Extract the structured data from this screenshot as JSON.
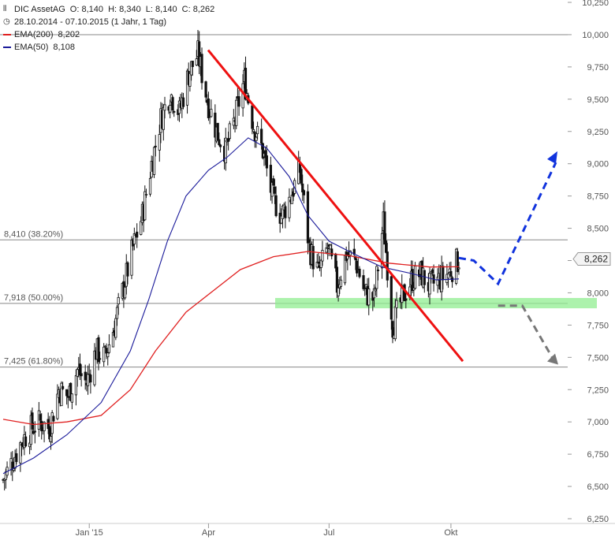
{
  "header": {
    "chart_icon": "candlestick-icon",
    "symbol": "DIC AssetAG",
    "ohlc": "O: 8,140  H: 8,340  L: 8,140  C: 8,262",
    "clock_icon": "clock-icon",
    "period": "28.10.2014 - 07.10.2015 (1 Jahr, 1 Tag)",
    "ema200_label": "EMA(200)",
    "ema200_value": "8,202",
    "ema50_label": "EMA(50)",
    "ema50_value": "8,108"
  },
  "colors": {
    "ema200": "#e02020",
    "ema50": "#1a1a9a",
    "trendline": "#ee1111",
    "bull_arrow": "#1133dd",
    "bear_arrow": "#777777",
    "support_zone": "#90ee90",
    "last_price_box": "#f4f4f4"
  },
  "chart_data": {
    "type": "candlestick",
    "ylim": [
      6.25,
      10.25
    ],
    "y_ticks": [
      "10,250",
      "10,000",
      "9,750",
      "9,500",
      "9,250",
      "9,000",
      "8,750",
      "8,500",
      "8,250",
      "8,000",
      "7,750",
      "7,500",
      "7,250",
      "7,000",
      "6,750",
      "6,500",
      "6,250"
    ],
    "y_tick_values": [
      10.25,
      10.0,
      9.75,
      9.5,
      9.25,
      9.0,
      8.75,
      8.5,
      8.25,
      8.0,
      7.75,
      7.5,
      7.25,
      7.0,
      6.75,
      6.5,
      6.25
    ],
    "x_ticks": [
      "Jan '15",
      "Apr",
      "Jul",
      "Okt"
    ],
    "x_tick_dates": [
      "2015-01-01",
      "2015-04-01",
      "2015-07-01",
      "2015-10-01"
    ],
    "start_date": "2014-10-28",
    "end_date": "2015-10-07",
    "last_price": "8,262",
    "last_price_value": 8.262,
    "fib_levels": [
      {
        "label": "8,410 (38.20%)",
        "value": 8.41
      },
      {
        "label": "7,918 (50.00%)",
        "value": 7.918
      },
      {
        "label": "7,425 (61.80%)",
        "value": 7.425
      }
    ],
    "top_line": 10.0,
    "closes_points": [
      [
        "2014-10-28",
        6.55
      ],
      [
        "2014-11-04",
        6.7
      ],
      [
        "2014-11-11",
        6.85
      ],
      [
        "2014-11-18",
        6.95
      ],
      [
        "2014-11-25",
        7.0
      ],
      [
        "2014-12-02",
        6.95
      ],
      [
        "2014-12-09",
        7.25
      ],
      [
        "2014-12-16",
        7.2
      ],
      [
        "2014-12-23",
        7.4
      ],
      [
        "2014-12-30",
        7.3
      ],
      [
        "2015-01-06",
        7.55
      ],
      [
        "2015-01-13",
        7.5
      ],
      [
        "2015-01-20",
        7.75
      ],
      [
        "2015-01-27",
        8.05
      ],
      [
        "2015-02-03",
        8.35
      ],
      [
        "2015-02-10",
        8.6
      ],
      [
        "2015-02-17",
        9.0
      ],
      [
        "2015-02-24",
        9.35
      ],
      [
        "2015-03-03",
        9.55
      ],
      [
        "2015-03-10",
        9.4
      ],
      [
        "2015-03-17",
        9.7
      ],
      [
        "2015-03-24",
        9.85
      ],
      [
        "2015-03-31",
        9.5
      ],
      [
        "2015-04-07",
        9.25
      ],
      [
        "2015-04-14",
        9.1
      ],
      [
        "2015-04-21",
        9.35
      ],
      [
        "2015-04-28",
        9.65
      ],
      [
        "2015-05-05",
        9.3
      ],
      [
        "2015-05-12",
        9.1
      ],
      [
        "2015-05-19",
        8.75
      ],
      [
        "2015-05-26",
        8.6
      ],
      [
        "2015-06-02",
        8.75
      ],
      [
        "2015-06-09",
        8.95
      ],
      [
        "2015-06-16",
        8.35
      ],
      [
        "2015-06-23",
        8.15
      ],
      [
        "2015-06-30",
        8.35
      ],
      [
        "2015-07-07",
        8.05
      ],
      [
        "2015-07-14",
        8.3
      ],
      [
        "2015-07-21",
        8.25
      ],
      [
        "2015-07-28",
        8.0
      ],
      [
        "2015-08-04",
        7.95
      ],
      [
        "2015-08-11",
        8.55
      ],
      [
        "2015-08-18",
        7.75
      ],
      [
        "2015-08-25",
        7.95
      ],
      [
        "2015-09-01",
        8.1
      ],
      [
        "2015-09-08",
        8.15
      ],
      [
        "2015-09-15",
        8.05
      ],
      [
        "2015-09-22",
        8.1
      ],
      [
        "2015-09-29",
        8.15
      ],
      [
        "2015-10-07",
        8.262
      ]
    ],
    "ema50_points": [
      [
        "2014-10-28",
        6.6
      ],
      [
        "2014-11-20",
        6.72
      ],
      [
        "2014-12-15",
        6.9
      ],
      [
        "2015-01-10",
        7.15
      ],
      [
        "2015-02-01",
        7.55
      ],
      [
        "2015-02-15",
        7.95
      ],
      [
        "2015-03-01",
        8.4
      ],
      [
        "2015-03-15",
        8.75
      ],
      [
        "2015-04-01",
        8.95
      ],
      [
        "2015-04-15",
        9.05
      ],
      [
        "2015-05-01",
        9.2
      ],
      [
        "2015-05-15",
        9.12
      ],
      [
        "2015-06-01",
        8.9
      ],
      [
        "2015-06-15",
        8.6
      ],
      [
        "2015-07-01",
        8.4
      ],
      [
        "2015-07-20",
        8.3
      ],
      [
        "2015-08-10",
        8.2
      ],
      [
        "2015-09-01",
        8.15
      ],
      [
        "2015-09-20",
        8.1
      ],
      [
        "2015-10-07",
        8.108
      ]
    ],
    "ema200_points": [
      [
        "2014-10-28",
        7.02
      ],
      [
        "2014-11-20",
        6.98
      ],
      [
        "2014-12-15",
        7.0
      ],
      [
        "2015-01-10",
        7.05
      ],
      [
        "2015-02-01",
        7.25
      ],
      [
        "2015-02-20",
        7.55
      ],
      [
        "2015-03-15",
        7.85
      ],
      [
        "2015-04-05",
        8.02
      ],
      [
        "2015-04-25",
        8.18
      ],
      [
        "2015-05-20",
        8.28
      ],
      [
        "2015-06-15",
        8.32
      ],
      [
        "2015-07-15",
        8.29
      ],
      [
        "2015-08-15",
        8.23
      ],
      [
        "2015-09-15",
        8.2
      ],
      [
        "2015-10-07",
        8.202
      ]
    ],
    "trendline": [
      [
        "2015-03-31",
        9.88
      ],
      [
        "2015-10-07",
        7.47
      ]
    ],
    "support_zone": [
      7.88,
      7.96
    ],
    "bull_scenario": [
      [
        "2015-10-07",
        8.27
      ],
      [
        "2015-10-15",
        8.25
      ],
      [
        "2015-10-28",
        8.07
      ],
      [
        "2015-11-28",
        9.06
      ]
    ],
    "bear_scenario": [
      [
        "2015-10-28",
        7.9
      ],
      [
        "2015-11-10",
        7.9
      ],
      [
        "2015-11-28",
        7.45
      ]
    ]
  }
}
